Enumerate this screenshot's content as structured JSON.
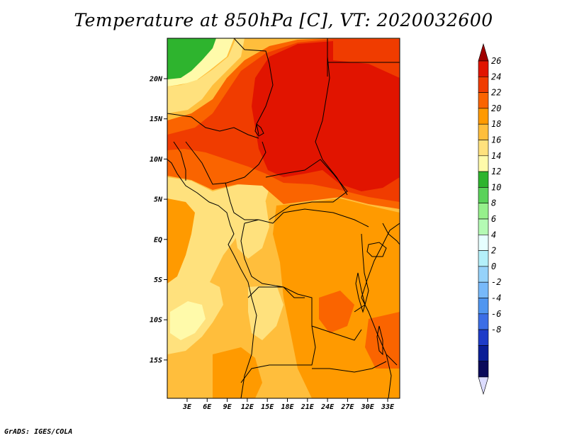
{
  "title": "Temperature at 850hPa [C], VT: 2020032600",
  "footer": "GrADS: IGES/COLA",
  "map": {
    "lat_labels": [
      "20N",
      "15N",
      "10N",
      "5N",
      "EQ",
      "5S",
      "10S",
      "15S"
    ],
    "lon_labels": [
      "3E",
      "6E",
      "9E",
      "12E",
      "15E",
      "18E",
      "21E",
      "24E",
      "27E",
      "30E",
      "33E"
    ]
  },
  "colorbar": {
    "labels": [
      "26",
      "24",
      "22",
      "20",
      "18",
      "16",
      "14",
      "12",
      "10",
      "8",
      "6",
      "4",
      "2",
      "0",
      "-2",
      "-4",
      "-6",
      "-8"
    ],
    "colors": [
      "#a00000",
      "#e11400",
      "#f03c00",
      "#fa6400",
      "#ff9a00",
      "#ffbe3c",
      "#ffe17d",
      "#fffaaa",
      "#2eb42e",
      "#5ad25a",
      "#96f08c",
      "#b4fab4",
      "#e6ffff",
      "#b4f0fa",
      "#96d2fa",
      "#78b9fa",
      "#5096f0",
      "#3c6ee6",
      "#1e3cc8",
      "#0a1e96",
      "#0a0a5a",
      "#dcdcff"
    ]
  }
}
